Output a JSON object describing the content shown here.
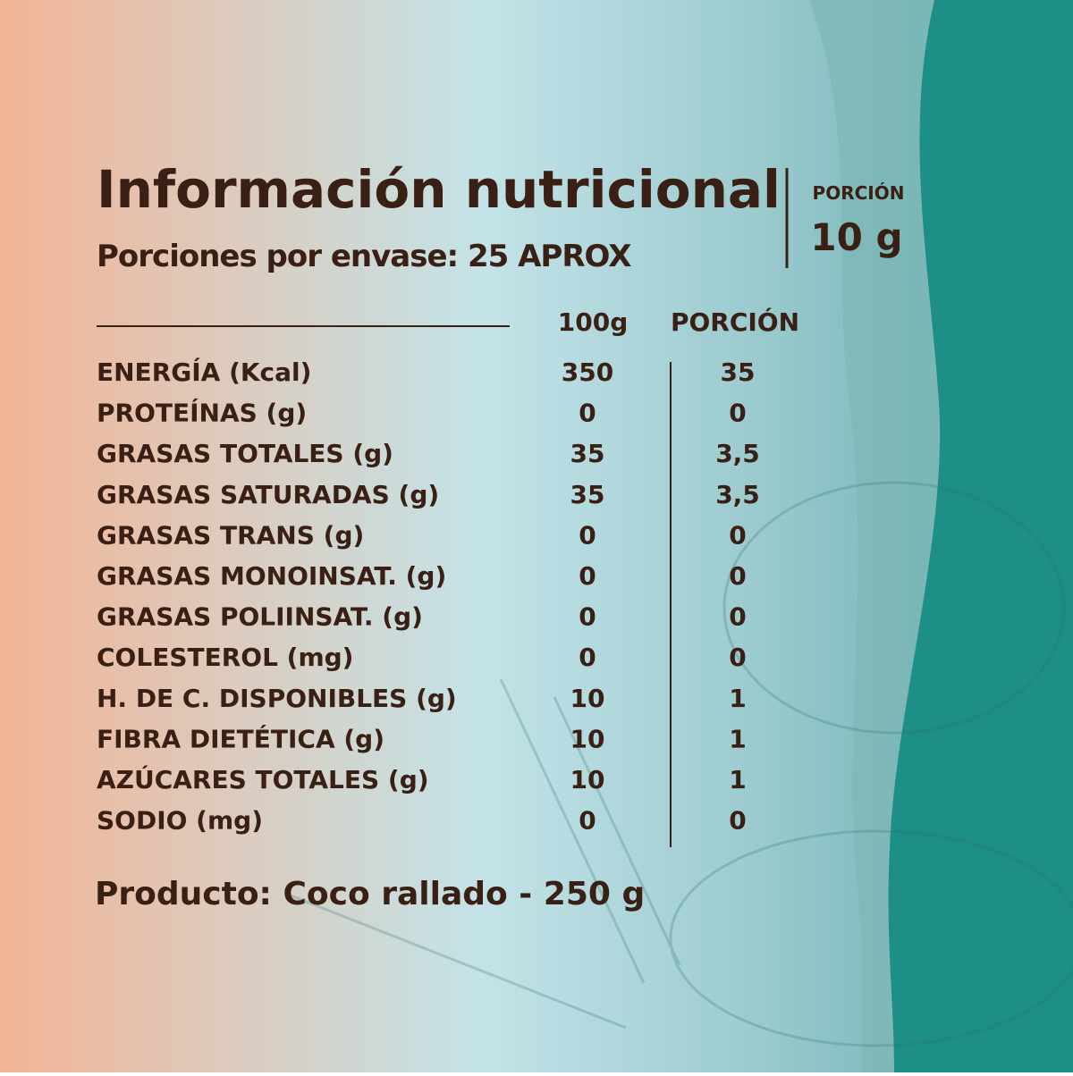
{
  "header": {
    "title": "Información nutricional",
    "subtitle": "Porciones por envase: 25 APROX",
    "portion_label": "PORCIÓN",
    "portion_value": "10 g"
  },
  "table": {
    "columns": [
      "100g",
      "PORCIÓN"
    ],
    "rows": [
      [
        "ENERGÍA (Kcal)",
        "350",
        "35"
      ],
      [
        "PROTEÍNAS (g)",
        "0",
        "0"
      ],
      [
        "GRASAS TOTALES (g)",
        "35",
        "3,5"
      ],
      [
        "GRASAS SATURADAS (g)",
        "35",
        "3,5"
      ],
      [
        "GRASAS TRANS (g)",
        "0",
        "0"
      ],
      [
        "GRASAS MONOINSAT. (g)",
        "0",
        "0"
      ],
      [
        "GRASAS POLIINSAT. (g)",
        "0",
        "0"
      ],
      [
        "COLESTEROL (mg)",
        "0",
        "0"
      ],
      [
        "H. DE C. DISPONIBLES (g)",
        "10",
        "1"
      ],
      [
        "FIBRA DIETÉTICA (g)",
        "10",
        "1"
      ],
      [
        "AZÚCARES TOTALES (g)",
        "10",
        "1"
      ],
      [
        "SODIO (mg)",
        "0",
        "0"
      ]
    ]
  },
  "footer": "Producto: Coco rallado - 250 g"
}
